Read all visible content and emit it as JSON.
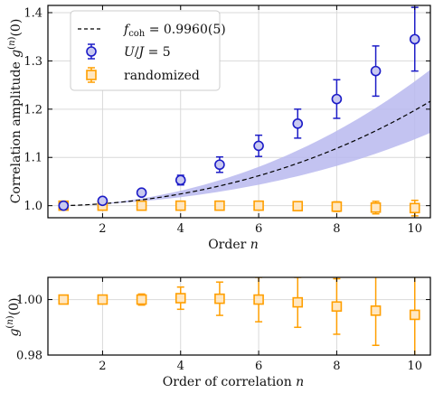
{
  "chart_data": [
    {
      "type": "scatter",
      "x": [
        1,
        2,
        3,
        4,
        5,
        6,
        7,
        8,
        9,
        10
      ],
      "xlim": [
        0.6,
        10.4
      ],
      "ylim": [
        0.975,
        1.415
      ],
      "xticks": [
        2,
        4,
        6,
        8,
        10
      ],
      "yticks": [
        1.0,
        1.1,
        1.2,
        1.3,
        1.4
      ],
      "xtick_labels": [
        "2",
        "4",
        "6",
        "8",
        "10"
      ],
      "ytick_labels": [
        "1.0",
        "1.1",
        "1.2",
        "1.3",
        "1.4"
      ],
      "xlabel": "Order n",
      "ylabel": "Correlation amplitude g(n)(0)",
      "grid": true,
      "legend_position": "top-left",
      "legend": [
        {
          "label": "f_coh = 0.9960(5)",
          "style": "dashed"
        },
        {
          "label": "U/J = 5",
          "marker": "circle"
        },
        {
          "label": "randomized",
          "marker": "square"
        }
      ],
      "fit_band_halfwidth_at_10": 0.06,
      "series": [
        {
          "name": "U/J = 5",
          "color": "#1c1cc7",
          "y": [
            1.0,
            1.01,
            1.027,
            1.053,
            1.085,
            1.124,
            1.17,
            1.221,
            1.279,
            1.345
          ],
          "err": [
            0.0,
            0.003,
            0.005,
            0.01,
            0.016,
            0.022,
            0.03,
            0.04,
            0.052,
            0.066
          ]
        },
        {
          "name": "randomized",
          "color": "#ff9f00",
          "y": [
            1.0,
            1.0,
            1.0,
            1.0,
            1.0,
            1.0,
            0.999,
            0.998,
            0.996,
            0.995
          ],
          "err": [
            0.0,
            0.001,
            0.002,
            0.004,
            0.005,
            0.006,
            0.008,
            0.01,
            0.013,
            0.016
          ]
        },
        {
          "name": "f_coh = 0.9960(5)",
          "color": "#000000",
          "base": 0.996,
          "style": "dashed"
        }
      ]
    },
    {
      "type": "scatter",
      "x": [
        1,
        2,
        3,
        4,
        5,
        6,
        7,
        8,
        9,
        10
      ],
      "xlim": [
        0.6,
        10.4
      ],
      "ylim": [
        0.98,
        1.008
      ],
      "xticks": [
        2,
        4,
        6,
        8,
        10
      ],
      "yticks": [
        0.98,
        1.0
      ],
      "xtick_labels": [
        "2",
        "4",
        "6",
        "8",
        "10"
      ],
      "ytick_labels": [
        "0.98",
        "1.00"
      ],
      "xlabel": "Order of correlation n",
      "ylabel": "g(n)(0)",
      "grid": true,
      "series": [
        {
          "name": "randomized",
          "color": "#ff9f00",
          "y": [
            1.0,
            1.0,
            1.0,
            1.0005,
            1.0003,
            1.0,
            0.999,
            0.9975,
            0.996,
            0.9945
          ],
          "err": [
            0.0,
            0.0002,
            0.002,
            0.004,
            0.006,
            0.008,
            0.009,
            0.01,
            0.0125,
            0.016
          ]
        }
      ]
    }
  ]
}
